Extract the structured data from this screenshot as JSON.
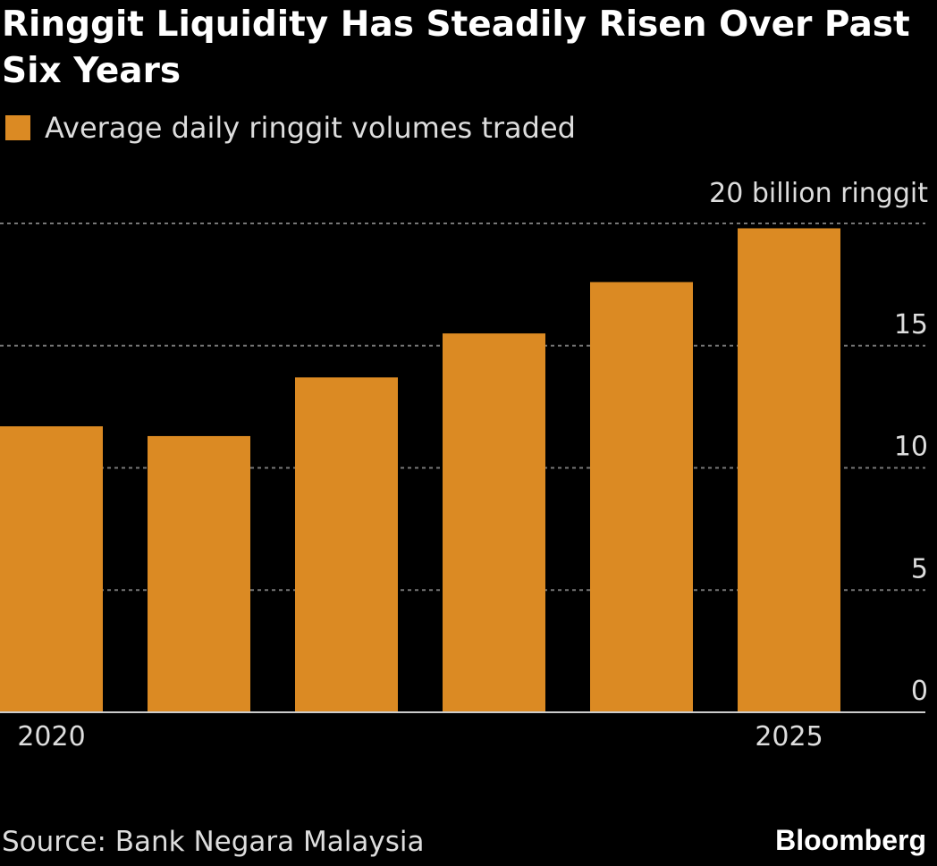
{
  "title": "Ringgit Liquidity Has Steadily Risen Over Past Six Years",
  "source": "Source: Bank Negara Malaysia",
  "brand": "Bloomberg",
  "colors": {
    "bar": "#DB8A23",
    "grid": "#777777",
    "background": "#000000"
  },
  "chart_data": {
    "type": "bar",
    "title": "Ringgit Liquidity Has Steadily Risen Over Past Six Years",
    "legend": [
      "Average daily ringgit volumes traded"
    ],
    "categories": [
      "2020",
      "2021",
      "2022",
      "2023",
      "2024",
      "2025"
    ],
    "x_tick_labels": [
      "2020",
      "",
      "",
      "",
      "",
      "2025"
    ],
    "values": [
      11.7,
      11.3,
      13.7,
      15.5,
      17.6,
      19.8
    ],
    "ylim": [
      0,
      20
    ],
    "y_ticks": [
      0,
      5,
      10,
      15,
      20
    ],
    "y_tick_labels": [
      "0",
      "5",
      "10",
      "15",
      "20 billion ringgit"
    ],
    "ylabel": "",
    "xlabel": "",
    "grid": true,
    "legend_position": "top-left"
  }
}
